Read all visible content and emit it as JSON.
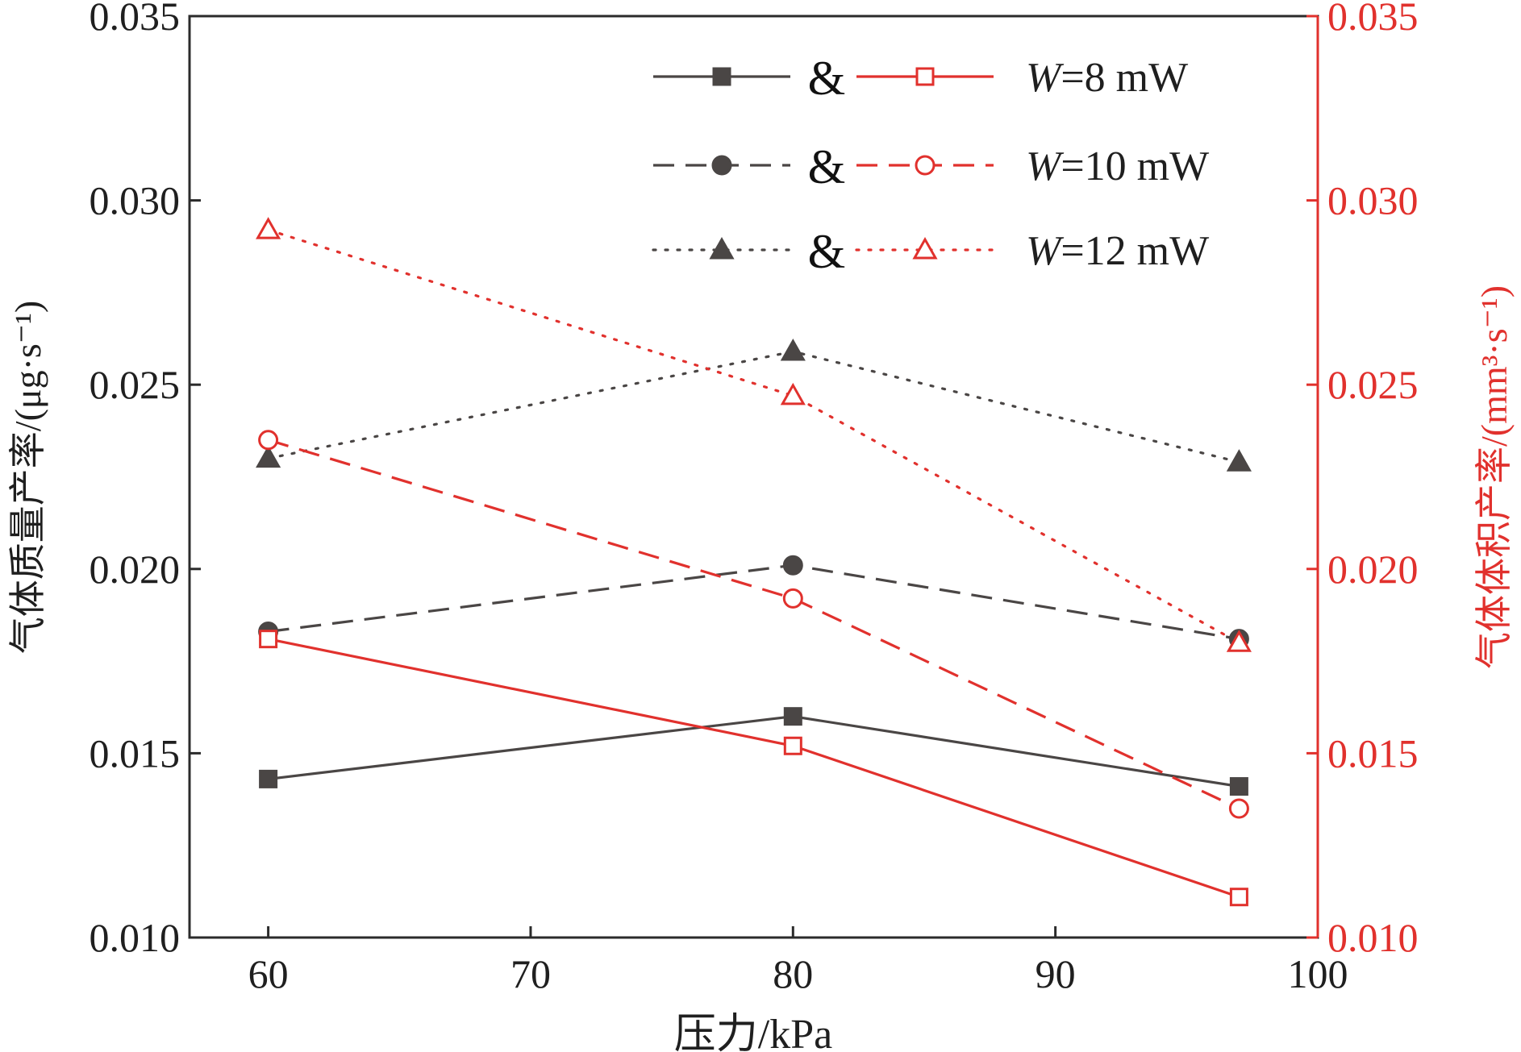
{
  "colors": {
    "mass": "#4a4645",
    "volume": "#e1312d"
  },
  "chart_data": {
    "type": "line",
    "x": [
      60,
      80,
      97
    ],
    "xlabel": "压力/kPa",
    "xlim": [
      57,
      100
    ],
    "xticks": [
      60,
      70,
      80,
      90,
      100
    ],
    "xtick_labels": [
      "60",
      "70",
      "80",
      "90",
      "100"
    ],
    "ylabel_left": "气体质量产率/(μg·s⁻¹)",
    "ylabel_right": "气体体积产率/(mm³·s⁻¹)",
    "ylim_left": [
      0.01,
      0.035
    ],
    "ylim_right": [
      0.01,
      0.035
    ],
    "yticks": [
      0.01,
      0.015,
      0.02,
      0.025,
      0.03,
      0.035
    ],
    "ytick_labels": [
      "0.010",
      "0.015",
      "0.020",
      "0.025",
      "0.030",
      "0.035"
    ],
    "legend_position": "top-right",
    "legend_joiner": "&",
    "legend": [
      {
        "var": "W",
        "rest": "=8 mW",
        "mass_series": 0,
        "volume_series": 3
      },
      {
        "var": "W",
        "rest": "=10 mW",
        "mass_series": 1,
        "volume_series": 4
      },
      {
        "var": "W",
        "rest": "=12 mW",
        "mass_series": 2,
        "volume_series": 5
      }
    ],
    "series": [
      {
        "axis": "left",
        "color": "mass",
        "dash": "solid",
        "marker": "square",
        "filled": true,
        "values": [
          0.0143,
          0.016,
          0.0141
        ]
      },
      {
        "axis": "left",
        "color": "mass",
        "dash": "dashed",
        "marker": "circle",
        "filled": true,
        "values": [
          0.0183,
          0.0201,
          0.0181
        ]
      },
      {
        "axis": "left",
        "color": "mass",
        "dash": "dotted",
        "marker": "triangle",
        "filled": true,
        "values": [
          0.023,
          0.0259,
          0.0229
        ]
      },
      {
        "axis": "right",
        "color": "volume",
        "dash": "solid",
        "marker": "square",
        "filled": false,
        "values": [
          0.0181,
          0.0152,
          0.0111
        ]
      },
      {
        "axis": "right",
        "color": "volume",
        "dash": "dashed",
        "marker": "circle",
        "filled": false,
        "values": [
          0.0235,
          0.0192,
          0.0135
        ]
      },
      {
        "axis": "right",
        "color": "volume",
        "dash": "dotted",
        "marker": "triangle",
        "filled": false,
        "values": [
          0.0292,
          0.0247,
          0.018
        ]
      }
    ]
  }
}
